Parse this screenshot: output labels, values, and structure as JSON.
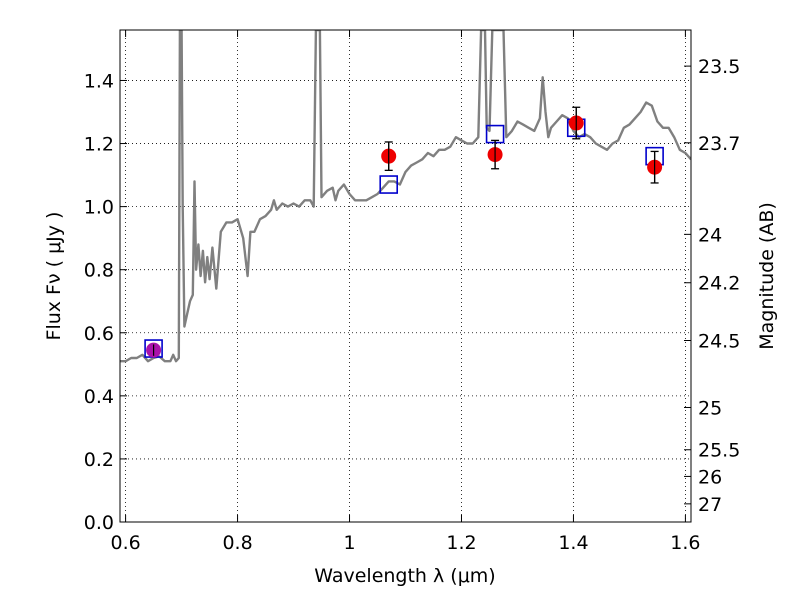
{
  "chart_data": {
    "type": "scatter",
    "xlabel": "Wavelength  λ (μm)",
    "ylabel": "Flux  Fν  ( μJy )",
    "y2label": "Magnitude (AB)",
    "xlim": [
      0.59,
      1.61
    ],
    "ylim": [
      0.0,
      1.56
    ],
    "grid": true,
    "x_ticks": [
      0.6,
      0.8,
      1.0,
      1.2,
      1.4,
      1.6
    ],
    "x_tick_labels": [
      "0.6",
      "0.8",
      "1",
      "1.2",
      "1.4",
      "1.6"
    ],
    "y_ticks": [
      0.0,
      0.2,
      0.4,
      0.6,
      0.8,
      1.0,
      1.2,
      1.4
    ],
    "y_tick_labels": [
      "0.0",
      "0.2",
      "0.4",
      "0.6",
      "0.8",
      "1.0",
      "1.2",
      "1.4"
    ],
    "mag_ticks": [
      23.5,
      23.7,
      24,
      24.2,
      24.5,
      25,
      25.5,
      26,
      27
    ],
    "mag_tick_labels": [
      "23.5",
      "23.7",
      "24",
      "24.2",
      "24.5",
      "25",
      "25.5",
      "26",
      "27"
    ],
    "model_spectrum": {
      "color": "#808080",
      "points": [
        [
          0.59,
          0.51
        ],
        [
          0.6,
          0.51
        ],
        [
          0.61,
          0.52
        ],
        [
          0.62,
          0.52
        ],
        [
          0.63,
          0.53
        ],
        [
          0.64,
          0.51
        ],
        [
          0.65,
          0.52
        ],
        [
          0.66,
          0.525
        ],
        [
          0.67,
          0.51
        ],
        [
          0.68,
          0.51
        ],
        [
          0.685,
          0.53
        ],
        [
          0.69,
          0.51
        ],
        [
          0.695,
          0.52
        ],
        [
          0.697,
          1.56
        ],
        [
          0.7,
          1.56
        ],
        [
          0.702,
          1.0
        ],
        [
          0.705,
          0.62
        ],
        [
          0.71,
          0.66
        ],
        [
          0.715,
          0.7
        ],
        [
          0.72,
          0.72
        ],
        [
          0.723,
          1.08
        ],
        [
          0.726,
          0.8
        ],
        [
          0.73,
          0.88
        ],
        [
          0.734,
          0.78
        ],
        [
          0.738,
          0.86
        ],
        [
          0.742,
          0.76
        ],
        [
          0.746,
          0.84
        ],
        [
          0.75,
          0.77
        ],
        [
          0.755,
          0.87
        ],
        [
          0.762,
          0.74
        ],
        [
          0.77,
          0.92
        ],
        [
          0.78,
          0.95
        ],
        [
          0.79,
          0.95
        ],
        [
          0.8,
          0.96
        ],
        [
          0.81,
          0.9
        ],
        [
          0.818,
          0.78
        ],
        [
          0.823,
          0.92
        ],
        [
          0.83,
          0.92
        ],
        [
          0.84,
          0.96
        ],
        [
          0.85,
          0.97
        ],
        [
          0.86,
          0.99
        ],
        [
          0.865,
          1.02
        ],
        [
          0.87,
          0.99
        ],
        [
          0.88,
          1.01
        ],
        [
          0.89,
          1.0
        ],
        [
          0.9,
          1.01
        ],
        [
          0.91,
          1.0
        ],
        [
          0.92,
          1.02
        ],
        [
          0.93,
          1.02
        ],
        [
          0.936,
          1.0
        ],
        [
          0.94,
          1.56
        ],
        [
          0.947,
          1.56
        ],
        [
          0.95,
          1.03
        ],
        [
          0.96,
          1.05
        ],
        [
          0.97,
          1.06
        ],
        [
          0.975,
          1.02
        ],
        [
          0.98,
          1.05
        ],
        [
          0.99,
          1.07
        ],
        [
          1.0,
          1.04
        ],
        [
          1.01,
          1.02
        ],
        [
          1.02,
          1.02
        ],
        [
          1.03,
          1.02
        ],
        [
          1.04,
          1.03
        ],
        [
          1.05,
          1.04
        ],
        [
          1.06,
          1.06
        ],
        [
          1.07,
          1.08
        ],
        [
          1.08,
          1.08
        ],
        [
          1.09,
          1.07
        ],
        [
          1.1,
          1.11
        ],
        [
          1.11,
          1.13
        ],
        [
          1.12,
          1.14
        ],
        [
          1.13,
          1.15
        ],
        [
          1.14,
          1.17
        ],
        [
          1.15,
          1.16
        ],
        [
          1.16,
          1.18
        ],
        [
          1.17,
          1.18
        ],
        [
          1.18,
          1.19
        ],
        [
          1.19,
          1.22
        ],
        [
          1.2,
          1.21
        ],
        [
          1.21,
          1.2
        ],
        [
          1.22,
          1.2
        ],
        [
          1.23,
          1.22
        ],
        [
          1.235,
          1.56
        ],
        [
          1.242,
          1.56
        ],
        [
          1.245,
          1.25
        ],
        [
          1.25,
          1.24
        ],
        [
          1.255,
          1.56
        ],
        [
          1.275,
          1.56
        ],
        [
          1.28,
          1.22
        ],
        [
          1.29,
          1.24
        ],
        [
          1.3,
          1.27
        ],
        [
          1.31,
          1.26
        ],
        [
          1.32,
          1.25
        ],
        [
          1.33,
          1.24
        ],
        [
          1.34,
          1.28
        ],
        [
          1.345,
          1.41
        ],
        [
          1.35,
          1.3
        ],
        [
          1.355,
          1.22
        ],
        [
          1.36,
          1.25
        ],
        [
          1.37,
          1.27
        ],
        [
          1.38,
          1.29
        ],
        [
          1.39,
          1.28
        ],
        [
          1.4,
          1.24
        ],
        [
          1.41,
          1.22
        ],
        [
          1.42,
          1.23
        ],
        [
          1.43,
          1.22
        ],
        [
          1.44,
          1.2
        ],
        [
          1.45,
          1.19
        ],
        [
          1.46,
          1.18
        ],
        [
          1.47,
          1.2
        ],
        [
          1.48,
          1.21
        ],
        [
          1.49,
          1.25
        ],
        [
          1.5,
          1.26
        ],
        [
          1.51,
          1.28
        ],
        [
          1.52,
          1.3
        ],
        [
          1.53,
          1.33
        ],
        [
          1.54,
          1.32
        ],
        [
          1.55,
          1.27
        ],
        [
          1.56,
          1.25
        ],
        [
          1.57,
          1.25
        ],
        [
          1.58,
          1.22
        ],
        [
          1.59,
          1.18
        ],
        [
          1.6,
          1.17
        ],
        [
          1.61,
          1.15
        ]
      ]
    },
    "model_photometry": {
      "marker": "open-square",
      "color": "#0000cc",
      "points": [
        {
          "x": 0.65,
          "y": 0.55
        },
        {
          "x": 1.07,
          "y": 1.07
        },
        {
          "x": 1.26,
          "y": 1.23
        },
        {
          "x": 1.405,
          "y": 1.25
        },
        {
          "x": 1.545,
          "y": 1.16
        }
      ]
    },
    "observed_photometry": {
      "marker": "filled-circle",
      "color": "#ee0000",
      "points": [
        {
          "x": 1.07,
          "y": 1.16,
          "err": 0.045,
          "color": "#ee0000"
        },
        {
          "x": 1.26,
          "y": 1.165,
          "err": 0.045,
          "color": "#ee0000"
        },
        {
          "x": 1.405,
          "y": 1.265,
          "err": 0.05,
          "color": "#ee0000"
        },
        {
          "x": 1.545,
          "y": 1.125,
          "err": 0.05,
          "color": "#ee0000"
        },
        {
          "x": 0.65,
          "y": 0.545,
          "err": 0.018,
          "color": "#aa11aa"
        }
      ]
    }
  }
}
